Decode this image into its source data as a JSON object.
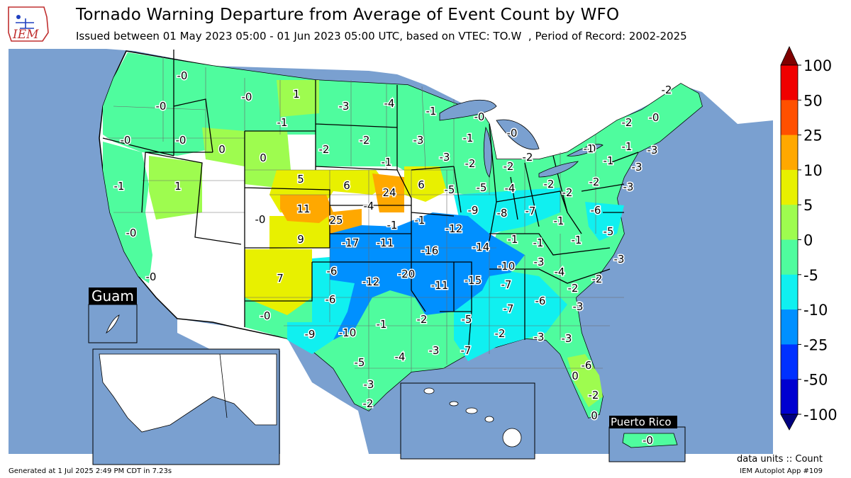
{
  "header": {
    "title": "Tornado Warning Departure from Average of Event Count by WFO",
    "subtitle": "Issued between 01 May 2023 05:00 - 01 Jun 2023 05:00 UTC, based on VTEC: TO.W  , Period of Record: 2002-2025",
    "logo_text": "IEM"
  },
  "insets": {
    "guam": "Guam",
    "puerto_rico": "Puerto Rico",
    "puerto_rico_value": "-0"
  },
  "colorbar": {
    "ticks": [
      "100",
      "50",
      "25",
      "10",
      "5",
      "0",
      "-5",
      "-10",
      "-25",
      "-50",
      "-100"
    ],
    "bins": [
      {
        "range": "50 to 100",
        "color": "#f00000"
      },
      {
        "range": "25 to 50",
        "color": "#ff5000"
      },
      {
        "range": "10 to 25",
        "color": "#ffa800"
      },
      {
        "range": "5 to 10",
        "color": "#e8f000"
      },
      {
        "range": "0 to 5",
        "color": "#9efc4f"
      },
      {
        "range": "-5 to 0",
        "color": "#4ffc9e"
      },
      {
        "range": "-10 to -5",
        "color": "#10f0f0"
      },
      {
        "range": "-25 to -10",
        "color": "#0090ff"
      },
      {
        "range": "-50 to -25",
        "color": "#0030ff"
      },
      {
        "range": "-100 to -50",
        "color": "#0000d0"
      }
    ],
    "over_color": "#800000",
    "under_color": "#000080"
  },
  "map_style": {
    "ocean": "#7aa0d0",
    "lakes": "#7aa0d0",
    "canada_mexico": "#ffffff",
    "no_data": "#ffffff"
  },
  "wfo_values": [
    "-0",
    "-0",
    "1",
    "-0",
    "-3",
    "-4",
    "-1",
    "-0",
    "-1",
    "-0",
    "-0",
    "0",
    "0",
    "-2",
    "-2",
    "-3",
    "-1",
    "-1",
    "-0",
    "-3",
    "-0",
    "-2",
    "-1",
    "1",
    "5",
    "6",
    "24",
    "6",
    "-3",
    "-3",
    "-2",
    "-2",
    "-2",
    "-1",
    "-0",
    "-2",
    "-1",
    "-0",
    "-3",
    "11",
    "-4",
    "-5",
    "-5",
    "-4",
    "-2",
    "-2",
    "-2",
    "-0",
    "-6",
    "-0",
    "25",
    "-1",
    "-1",
    "-9",
    "-8",
    "-7",
    "-1",
    "-5",
    "9",
    "-17",
    "-11",
    "-12",
    "-16",
    "-14",
    "-1",
    "-1",
    "-1",
    "-1",
    "-0",
    "7",
    "-6",
    "-20",
    "-10",
    "-3",
    "-4",
    "-3",
    "-12",
    "-11",
    "-15",
    "-7",
    "-2",
    "-2",
    "-6",
    "-7",
    "-6",
    "-3",
    "-0",
    "-1",
    "-2",
    "-5",
    "-2",
    "-3",
    "-9",
    "-10",
    "-7",
    "-3",
    "-3",
    "-4",
    "-5",
    "-3",
    "-2",
    "-6",
    "0",
    "-2",
    "0",
    "-0"
  ],
  "footer": {
    "units": "data units :: Count",
    "app": "IEM Autoplot App #109",
    "generated": "Generated at 1 Jul 2025 2:49 PM CDT in 7.23s"
  }
}
